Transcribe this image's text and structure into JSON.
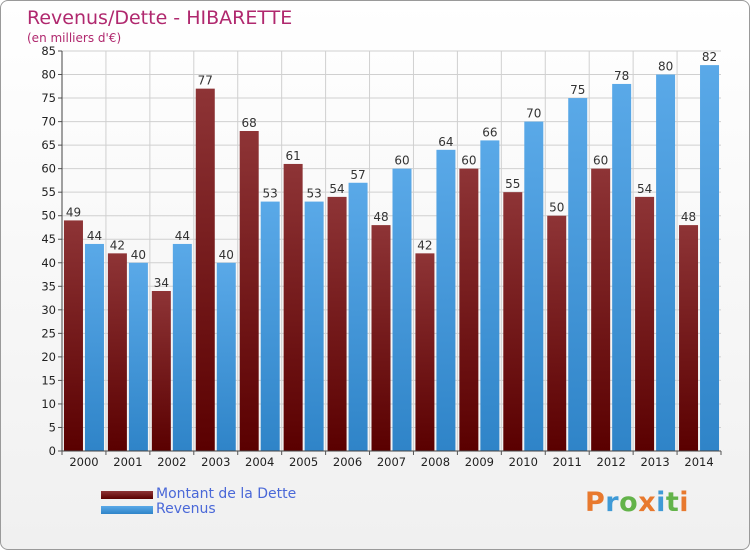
{
  "title": "Revenus/Dette - HIBARETTE",
  "subtitle": "(en milliers d'€)",
  "legend": {
    "dette_label": "Montant de la Dette",
    "revenus_label": "Revenus"
  },
  "logo": {
    "text": "Proxiti",
    "letters": [
      "P",
      "r",
      "o",
      "x",
      "i",
      "t",
      "i"
    ]
  },
  "colors": {
    "dette_top": "#8e3436",
    "dette_bottom": "#5a0000",
    "revenus_top": "#5aa9e8",
    "revenus_bottom": "#2f84c8",
    "title": "#b0286e",
    "axis_text": "#222222",
    "grid": "#d0d0d0",
    "logo": [
      "#e8792e",
      "#3f9ad6",
      "#63b34a",
      "#e8792e",
      "#3f9ad6",
      "#63b34a",
      "#e8792e"
    ]
  },
  "chart_data": {
    "type": "bar",
    "categories": [
      "2000",
      "2001",
      "2002",
      "2003",
      "2004",
      "2005",
      "2006",
      "2007",
      "2008",
      "2009",
      "2010",
      "2011",
      "2012",
      "2013",
      "2014"
    ],
    "series": [
      {
        "name": "Montant de la Dette",
        "values": [
          49,
          42,
          34,
          77,
          68,
          61,
          54,
          48,
          42,
          60,
          55,
          50,
          60,
          54,
          48
        ]
      },
      {
        "name": "Revenus",
        "values": [
          44,
          40,
          44,
          40,
          53,
          53,
          57,
          60,
          64,
          66,
          70,
          75,
          78,
          80,
          82
        ]
      }
    ],
    "ylim": [
      0,
      85
    ],
    "yticks": [
      0,
      5,
      10,
      15,
      20,
      25,
      30,
      35,
      40,
      45,
      50,
      55,
      60,
      65,
      70,
      75,
      80,
      85
    ],
    "grid": true,
    "legend_position": "bottom-left"
  }
}
